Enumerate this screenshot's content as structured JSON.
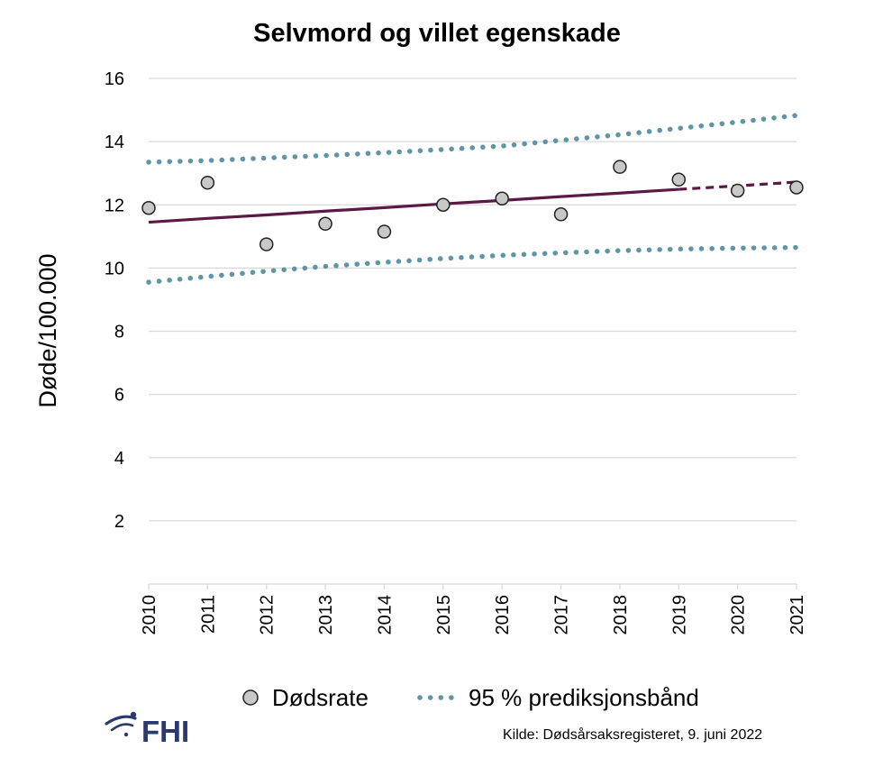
{
  "chart_data": {
    "type": "scatter",
    "title": "Selvmord og villet egenskade",
    "xlabel": "",
    "ylabel": "Døde/100.000",
    "x": [
      "2010",
      "2011",
      "2012",
      "2013",
      "2014",
      "2015",
      "2016",
      "2017",
      "2018",
      "2019",
      "2020",
      "2021"
    ],
    "ylim": [
      0,
      16
    ],
    "yticks": [
      2,
      4,
      6,
      8,
      10,
      12,
      14,
      16
    ],
    "grid": true,
    "series": [
      {
        "name": "Dødsrate",
        "kind": "points",
        "values": [
          11.9,
          12.7,
          10.75,
          11.4,
          11.15,
          12.0,
          12.2,
          11.7,
          13.2,
          12.8,
          12.45,
          12.55
        ]
      },
      {
        "name": "",
        "kind": "trend-line",
        "solid_until": "2019",
        "values": [
          11.45,
          11.57,
          11.68,
          11.8,
          11.91,
          12.03,
          12.14,
          12.26,
          12.37,
          12.49,
          12.6,
          12.72
        ]
      },
      {
        "name": "95 % prediksjonsbånd",
        "kind": "band-upper",
        "values": [
          13.35,
          13.4,
          13.48,
          13.56,
          13.65,
          13.75,
          13.86,
          14.04,
          14.22,
          14.42,
          14.62,
          14.83
        ]
      },
      {
        "name": "95 % prediksjonsbånd",
        "kind": "band-lower",
        "values": [
          9.55,
          9.73,
          9.9,
          10.05,
          10.18,
          10.3,
          10.4,
          10.48,
          10.55,
          10.6,
          10.63,
          10.65
        ]
      }
    ],
    "legend": [
      "Dødsrate",
      "95 % prediksjonsbånd"
    ],
    "legend_position": "bottom"
  },
  "source_text": "Kilde: Dødsårsaksregisteret, 9. juni 2022",
  "logo_text": "FHI",
  "colors": {
    "points_fill": "#c8c8c8",
    "points_stroke": "#222222",
    "trend": "#5b1a45",
    "band": "#5f95a5",
    "grid": "#d9d9d9",
    "logo": "#2a3a6e"
  }
}
